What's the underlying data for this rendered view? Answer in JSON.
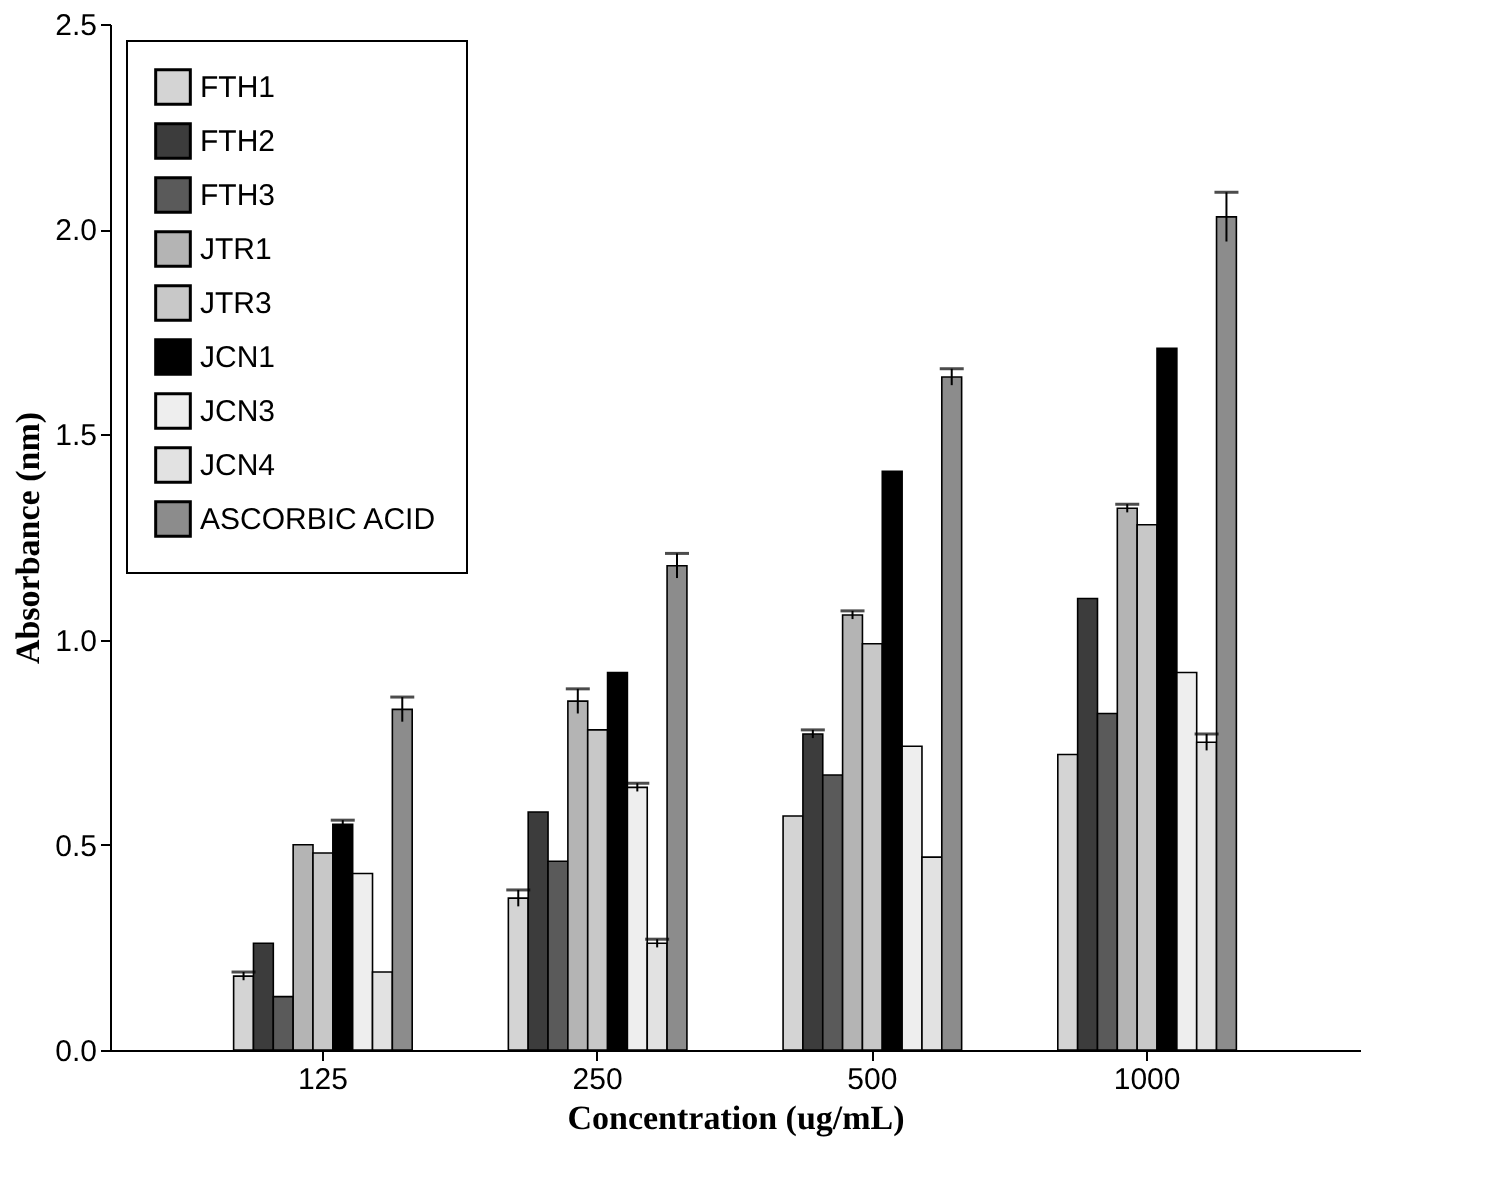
{
  "chart_data": {
    "type": "bar",
    "xlabel": "Concentration (ug/mL)",
    "ylabel": "Absorbance (nm)",
    "categories": [
      "125",
      "250",
      "500",
      "1000"
    ],
    "ylim": [
      0,
      2.5
    ],
    "yticks": [
      {
        "value": 0,
        "label": "0.0"
      },
      0.5,
      {
        "value": 1,
        "label": "1.0"
      },
      1.5,
      {
        "value": 2,
        "label": "2.0"
      },
      2.5
    ],
    "grid": false,
    "legend": "top left",
    "series": [
      {
        "name": "FTH1",
        "color": "#d4d4d4",
        "values": [
          0.18,
          0.37,
          0.57,
          0.72
        ],
        "errors": [
          0.01,
          0.02,
          null,
          null
        ]
      },
      {
        "name": "FTH2",
        "color": "#3c3c3c",
        "values": [
          0.26,
          0.58,
          0.77,
          1.1
        ],
        "errors": [
          null,
          null,
          0.01,
          null
        ]
      },
      {
        "name": "FTH3",
        "color": "#5a5a5a",
        "values": [
          0.13,
          0.46,
          0.67,
          0.82
        ],
        "errors": [
          null,
          null,
          null,
          null
        ]
      },
      {
        "name": "JTR1",
        "color": "#b4b4b4",
        "values": [
          0.5,
          0.85,
          1.06,
          1.32
        ],
        "errors": [
          null,
          0.03,
          0.01,
          0.01
        ]
      },
      {
        "name": "JTR3",
        "color": "#c8c8c8",
        "values": [
          0.48,
          0.78,
          0.99,
          1.28
        ],
        "errors": [
          null,
          null,
          null,
          null
        ]
      },
      {
        "name": "JCN1",
        "color": "#000000",
        "values": [
          0.55,
          0.92,
          1.41,
          1.71
        ],
        "errors": [
          0.01,
          null,
          null,
          null
        ]
      },
      {
        "name": "JCN3",
        "color": "#eeeeee",
        "values": [
          0.43,
          0.64,
          0.74,
          0.92
        ],
        "errors": [
          null,
          0.01,
          null,
          null
        ]
      },
      {
        "name": "JCN4",
        "color": "#e2e2e2",
        "values": [
          0.19,
          0.26,
          0.47,
          0.75
        ],
        "errors": [
          null,
          0.01,
          null,
          0.02
        ]
      },
      {
        "name": "ASCORBIC ACID",
        "color": "#8c8c8c",
        "values": [
          0.83,
          1.18,
          1.64,
          2.03
        ],
        "errors": [
          0.03,
          0.03,
          0.02,
          0.06
        ]
      }
    ]
  }
}
